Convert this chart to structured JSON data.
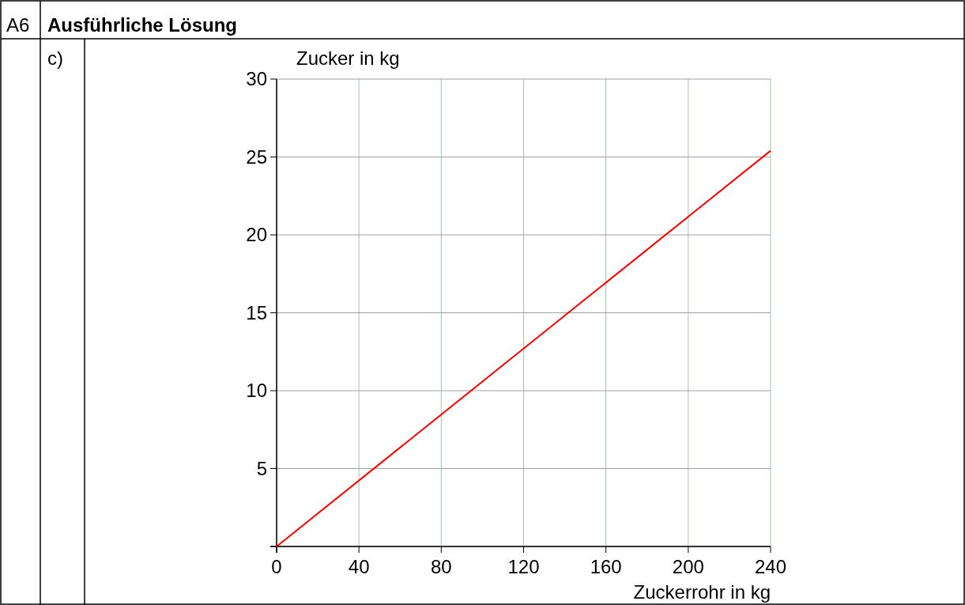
{
  "chart_data": {
    "type": "line",
    "title": "Ausführliche Lösung",
    "annotations": [
      "A6",
      "c)"
    ],
    "xlabel": "Zuckerrohr in kg",
    "ylabel": "Zucker in kg",
    "x": [
      0,
      120,
      240
    ],
    "series": [
      {
        "color": "#ff0000",
        "values": [
          0,
          12.7,
          25.4
        ]
      }
    ],
    "xlim": [
      0,
      240
    ],
    "xticks": [
      0,
      40,
      80,
      120,
      160,
      200,
      240
    ],
    "ylim": [
      0,
      30
    ],
    "yticks": [
      {
        "value": 0,
        "label": null
      },
      5,
      10,
      15,
      20,
      25,
      30
    ],
    "grid": true,
    "marker": "none",
    "line_style": "solid"
  }
}
